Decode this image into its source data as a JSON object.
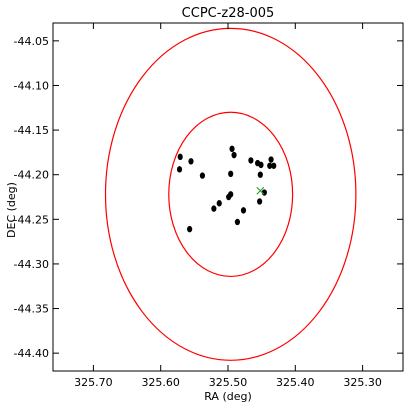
{
  "chart_data": {
    "type": "scatter",
    "title": "CCPC-z28-005",
    "xlabel": "RA (deg)",
    "ylabel": "DEC (deg)",
    "xlim": [
      325.76,
      325.24
    ],
    "ylim": [
      -44.42,
      -44.03
    ],
    "x_inverted": true,
    "grid": false,
    "x_ticks": [
      325.7,
      325.6,
      325.5,
      325.4,
      325.3
    ],
    "x_tick_labels": [
      "325.70",
      "325.60",
      "325.50",
      "325.40",
      "325.30"
    ],
    "y_ticks": [
      -44.05,
      -44.1,
      -44.15,
      -44.2,
      -44.25,
      -44.3,
      -44.35,
      -44.4
    ],
    "y_tick_labels": [
      "-44.05",
      "-44.10",
      "-44.15",
      "-44.20",
      "-44.25",
      "-44.30",
      "-44.35",
      "-44.40"
    ],
    "colors": {
      "points": "#000000",
      "circles": "#ff0000",
      "center_marker": "#2ca02c",
      "axes": "#000000"
    },
    "circles": [
      {
        "center_x": 325.496,
        "center_y": -44.222,
        "radius_deg": 0.092
      },
      {
        "center_x": 325.496,
        "center_y": -44.222,
        "radius_deg": 0.186
      }
    ],
    "center_marker": {
      "x": 325.452,
      "y": -44.218,
      "symbol": "x"
    },
    "points": [
      {
        "x": 325.571,
        "y": -44.18
      },
      {
        "x": 325.572,
        "y": -44.194
      },
      {
        "x": 325.555,
        "y": -44.185
      },
      {
        "x": 325.538,
        "y": -44.201
      },
      {
        "x": 325.494,
        "y": -44.171
      },
      {
        "x": 325.491,
        "y": -44.178
      },
      {
        "x": 325.496,
        "y": -44.199
      },
      {
        "x": 325.496,
        "y": -44.222
      },
      {
        "x": 325.499,
        "y": -44.225
      },
      {
        "x": 325.513,
        "y": -44.232
      },
      {
        "x": 325.521,
        "y": -44.238
      },
      {
        "x": 325.477,
        "y": -44.24
      },
      {
        "x": 325.486,
        "y": -44.253
      },
      {
        "x": 325.557,
        "y": -44.261
      },
      {
        "x": 325.466,
        "y": -44.184
      },
      {
        "x": 325.456,
        "y": -44.187
      },
      {
        "x": 325.451,
        "y": -44.189
      },
      {
        "x": 325.436,
        "y": -44.183
      },
      {
        "x": 325.438,
        "y": -44.19
      },
      {
        "x": 325.432,
        "y": -44.19
      },
      {
        "x": 325.452,
        "y": -44.2
      },
      {
        "x": 325.446,
        "y": -44.22
      },
      {
        "x": 325.453,
        "y": -44.23
      }
    ]
  }
}
